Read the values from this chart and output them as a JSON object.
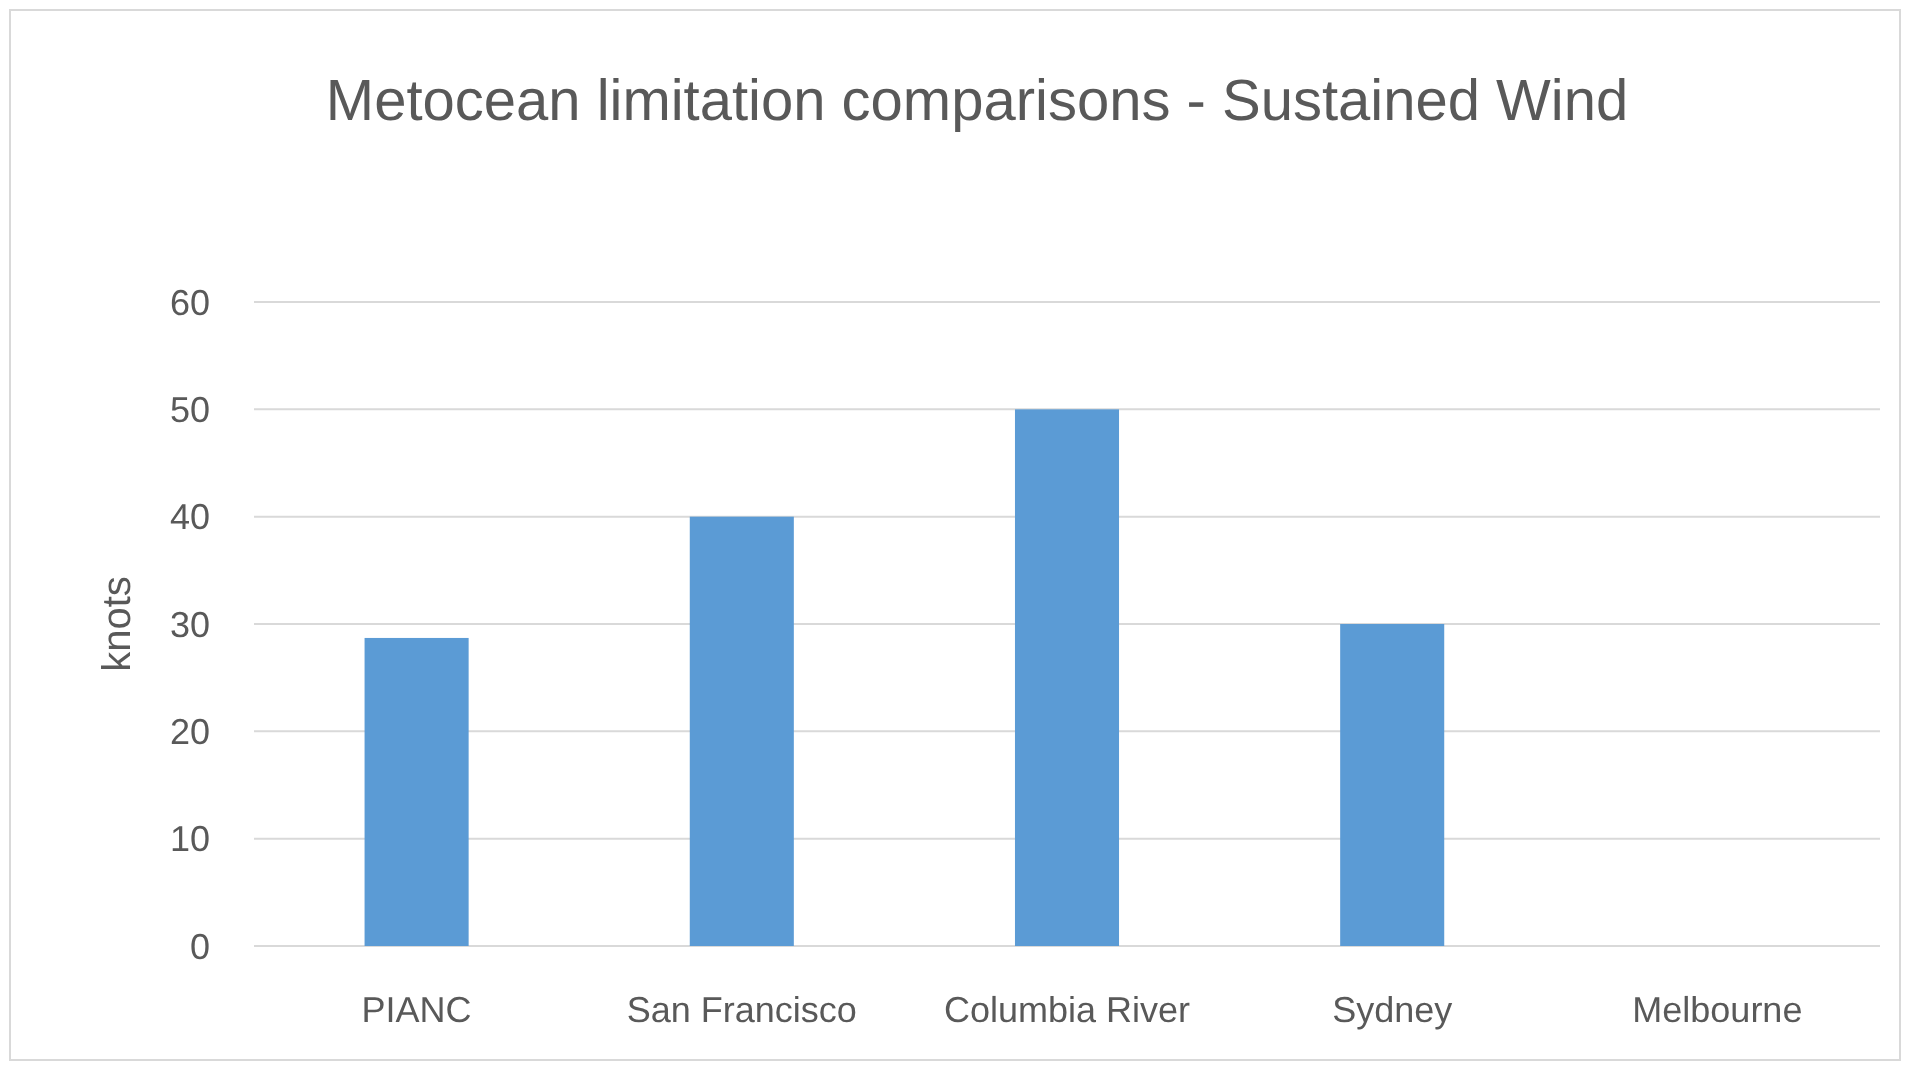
{
  "chart_data": {
    "type": "bar",
    "title": "Metocean limitation comparisons -  Sustained Wind",
    "ylabel": "knots",
    "categories": [
      "PIANC",
      "San Francisco",
      "Columbia River",
      "Sydney",
      "Melbourne"
    ],
    "values": [
      28.7,
      40,
      50,
      30,
      null
    ],
    "color": "#5b9bd5",
    "ylim": [
      0,
      60
    ],
    "yticks": [
      0,
      10,
      20,
      30,
      40,
      50,
      60
    ],
    "grid": "y"
  }
}
